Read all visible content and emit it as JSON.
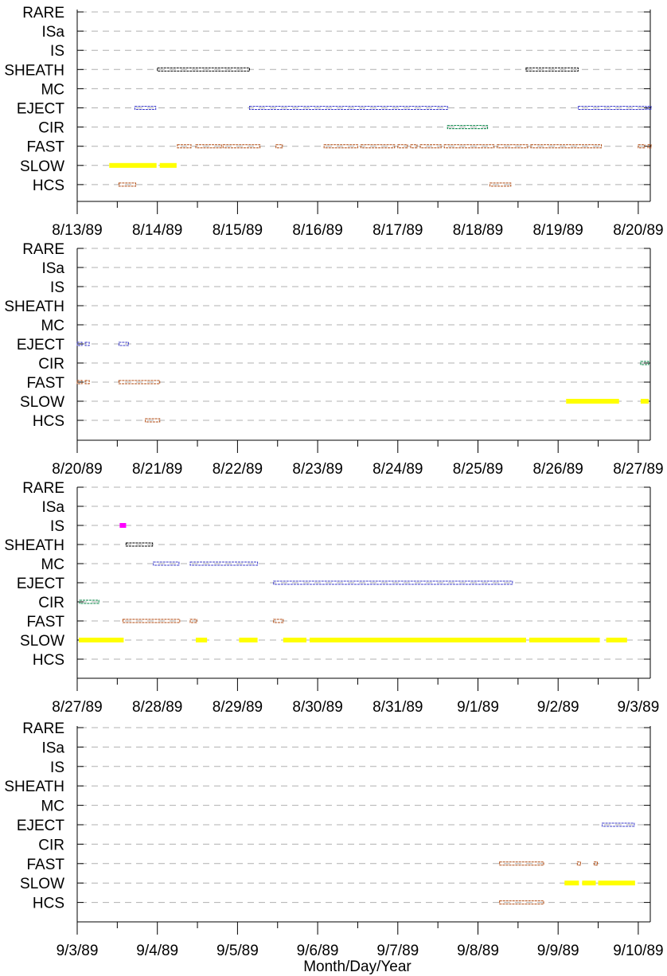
{
  "chart_data": {
    "type": "timeline",
    "xlabel": "Month/Day/Year",
    "categories": [
      "RARE",
      "ISa",
      "IS",
      "SHEATH",
      "MC",
      "EJECT",
      "CIR",
      "FAST",
      "SLOW",
      "HCS"
    ],
    "colors": {
      "SHEATH": "#000000",
      "EJECT": "#3b3bc8",
      "MC": "#3b3bc8",
      "CIR": "#008040",
      "FAST": "#b04a10",
      "HCS": "#b04a10",
      "SLOW": "#ffff00",
      "IS": "#ff00ff"
    },
    "grid": "dashed horizontal lines at each category",
    "panels": [
      {
        "x_ticks": [
          "8/13/89",
          "8/14/89",
          "8/15/89",
          "8/16/89",
          "8/17/89",
          "8/18/89",
          "8/19/89",
          "8/20/89"
        ],
        "events": [
          {
            "cat": "SHEATH",
            "start": 1.0,
            "end": 2.15
          },
          {
            "cat": "SHEATH",
            "start": 5.6,
            "end": 6.25
          },
          {
            "cat": "EJECT",
            "start": 0.72,
            "end": 0.98
          },
          {
            "cat": "EJECT",
            "start": 2.15,
            "end": 4.62
          },
          {
            "cat": "EJECT",
            "start": 6.25,
            "end": 7.1
          },
          {
            "cat": "EJECT",
            "start": 7.12,
            "end": 7.16
          },
          {
            "cat": "CIR",
            "start": 4.62,
            "end": 5.12
          },
          {
            "cat": "FAST",
            "start": 1.25,
            "end": 1.42
          },
          {
            "cat": "FAST",
            "start": 1.48,
            "end": 1.8
          },
          {
            "cat": "FAST",
            "start": 1.82,
            "end": 2.28
          },
          {
            "cat": "FAST",
            "start": 2.48,
            "end": 2.56
          },
          {
            "cat": "FAST",
            "start": 3.08,
            "end": 3.5
          },
          {
            "cat": "FAST",
            "start": 3.54,
            "end": 3.96
          },
          {
            "cat": "FAST",
            "start": 4.0,
            "end": 4.12
          },
          {
            "cat": "FAST",
            "start": 4.16,
            "end": 4.24
          },
          {
            "cat": "FAST",
            "start": 4.28,
            "end": 4.54
          },
          {
            "cat": "FAST",
            "start": 4.58,
            "end": 5.2
          },
          {
            "cat": "FAST",
            "start": 5.24,
            "end": 5.62
          },
          {
            "cat": "FAST",
            "start": 5.66,
            "end": 6.54
          },
          {
            "cat": "FAST",
            "start": 7.0,
            "end": 7.08
          },
          {
            "cat": "FAST",
            "start": 7.12,
            "end": 7.16
          },
          {
            "cat": "SLOW",
            "start": 0.4,
            "end": 0.99
          },
          {
            "cat": "SLOW",
            "start": 1.03,
            "end": 1.24
          },
          {
            "cat": "HCS",
            "start": 0.52,
            "end": 0.73
          },
          {
            "cat": "HCS",
            "start": 5.15,
            "end": 5.41
          }
        ]
      },
      {
        "x_ticks": [
          "8/20/89",
          "8/21/89",
          "8/22/89",
          "8/23/89",
          "8/24/89",
          "8/25/89",
          "8/26/89",
          "8/27/89"
        ],
        "events": [
          {
            "cat": "EJECT",
            "start": 0.0,
            "end": 0.06
          },
          {
            "cat": "EJECT",
            "start": 0.1,
            "end": 0.15
          },
          {
            "cat": "EJECT",
            "start": 0.52,
            "end": 0.64
          },
          {
            "cat": "CIR",
            "start": 7.03,
            "end": 7.13
          },
          {
            "cat": "FAST",
            "start": 0.0,
            "end": 0.06
          },
          {
            "cat": "FAST",
            "start": 0.1,
            "end": 0.15
          },
          {
            "cat": "FAST",
            "start": 0.52,
            "end": 1.03
          },
          {
            "cat": "SLOW",
            "start": 6.1,
            "end": 6.76
          },
          {
            "cat": "SLOW",
            "start": 7.03,
            "end": 7.13
          },
          {
            "cat": "HCS",
            "start": 0.85,
            "end": 1.03
          }
        ]
      },
      {
        "x_ticks": [
          "8/27/89",
          "8/28/89",
          "8/29/89",
          "8/30/89",
          "8/31/89",
          "9/1/89",
          "9/2/89",
          "9/3/89"
        ],
        "events": [
          {
            "cat": "IS",
            "start": 0.53,
            "end": 0.61
          },
          {
            "cat": "SHEATH",
            "start": 0.61,
            "end": 0.94
          },
          {
            "cat": "MC",
            "start": 0.95,
            "end": 1.27
          },
          {
            "cat": "MC",
            "start": 1.41,
            "end": 2.25
          },
          {
            "cat": "EJECT",
            "start": 2.45,
            "end": 5.43
          },
          {
            "cat": "CIR",
            "start": 0.03,
            "end": 0.27
          },
          {
            "cat": "FAST",
            "start": 0.57,
            "end": 1.28
          },
          {
            "cat": "FAST",
            "start": 1.41,
            "end": 1.49
          },
          {
            "cat": "FAST",
            "start": 2.45,
            "end": 2.57
          },
          {
            "cat": "SLOW",
            "start": 0.02,
            "end": 0.58
          },
          {
            "cat": "SLOW",
            "start": 1.48,
            "end": 1.62
          },
          {
            "cat": "SLOW",
            "start": 2.02,
            "end": 2.25
          },
          {
            "cat": "SLOW",
            "start": 2.57,
            "end": 2.86
          },
          {
            "cat": "SLOW",
            "start": 2.9,
            "end": 5.6
          },
          {
            "cat": "SLOW",
            "start": 5.64,
            "end": 6.52
          },
          {
            "cat": "SLOW",
            "start": 6.6,
            "end": 6.86
          }
        ]
      },
      {
        "x_ticks": [
          "9/3/89",
          "9/4/89",
          "9/5/89",
          "9/6/89",
          "9/7/89",
          "9/8/89",
          "9/9/89",
          "9/10/89"
        ],
        "events": [
          {
            "cat": "EJECT",
            "start": 6.55,
            "end": 6.95
          },
          {
            "cat": "FAST",
            "start": 5.27,
            "end": 5.82
          },
          {
            "cat": "FAST",
            "start": 6.24,
            "end": 6.28
          },
          {
            "cat": "FAST",
            "start": 6.45,
            "end": 6.49
          },
          {
            "cat": "SLOW",
            "start": 6.08,
            "end": 6.26
          },
          {
            "cat": "SLOW",
            "start": 6.3,
            "end": 6.47
          },
          {
            "cat": "SLOW",
            "start": 6.5,
            "end": 6.96
          },
          {
            "cat": "HCS",
            "start": 5.27,
            "end": 5.82
          }
        ]
      }
    ]
  }
}
